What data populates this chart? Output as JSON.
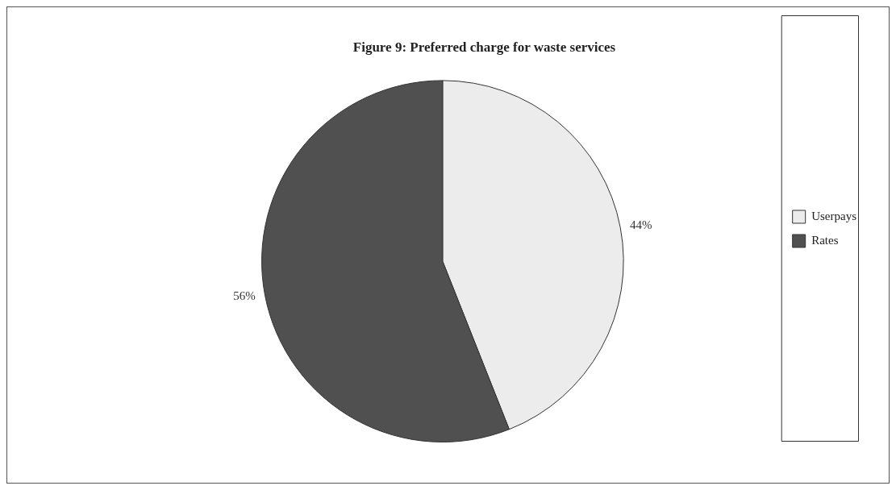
{
  "chart_data": {
    "type": "pie",
    "title": "Figure 9: Preferred charge for waste services",
    "categories": [
      "Userpays",
      "Rates"
    ],
    "values": [
      44,
      56
    ],
    "value_labels": [
      "44%",
      "56%"
    ],
    "colors": [
      "#ececec",
      "#505050"
    ],
    "legend": "right"
  }
}
